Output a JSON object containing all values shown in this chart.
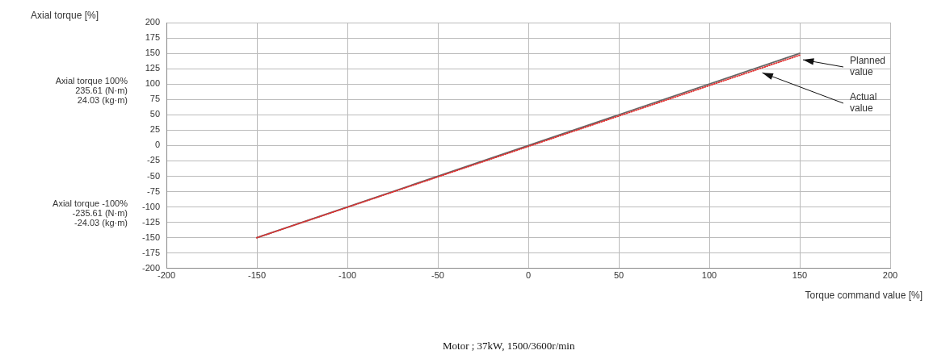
{
  "chart_data": {
    "type": "line",
    "xlabel": "Torque command value [%]",
    "ylabel": "Axial torque [%]",
    "xlim": [
      -200,
      200
    ],
    "xticks": [
      -200,
      -150,
      -100,
      -50,
      0,
      50,
      100,
      150,
      200
    ],
    "ylim": [
      -200,
      200
    ],
    "yticks": [
      200,
      175,
      150,
      125,
      100,
      75,
      50,
      25,
      0,
      -25,
      -50,
      -75,
      -100,
      -125,
      -150,
      -175,
      -200
    ],
    "x": [
      -150,
      150
    ],
    "grid": true,
    "legend": false,
    "marker": "none",
    "series": [
      {
        "name": "Planned value",
        "color": "#666666",
        "values": [
          -150,
          150
        ],
        "line_style": "solid"
      },
      {
        "name": "Actual value",
        "color": "#e03030",
        "values": [
          -150,
          147
        ],
        "line_style": "dotted"
      }
    ],
    "annotations": [
      "Axial torque 100%\n235.61 (N·m)\n24.03 (kg·m)",
      "Axial torque -100%\n-235.61 (N·m)\n-24.03 (kg·m)",
      "Motor ; 37kW, 1500/3600r/min"
    ]
  }
}
